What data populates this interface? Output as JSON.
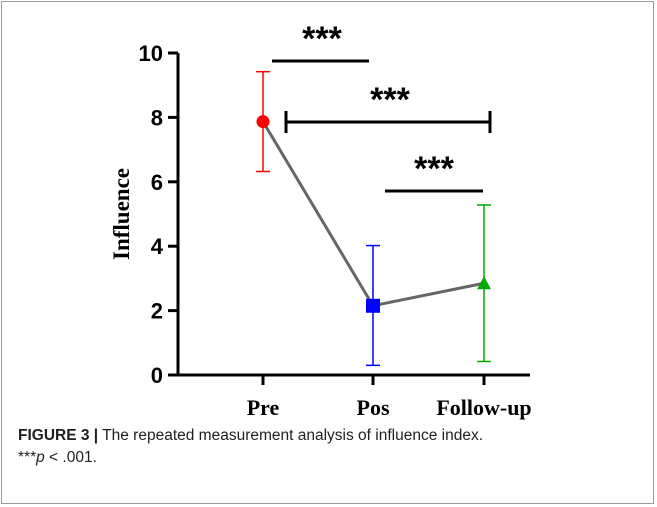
{
  "chart_data": {
    "type": "line",
    "categories": [
      "Pre",
      "Pos",
      "Follow-up"
    ],
    "xlabel": "",
    "ylabel": "Influence",
    "ylim": [
      0,
      10
    ],
    "yticks": [
      "0",
      "2",
      "4",
      "6",
      "8",
      "10"
    ],
    "series": [
      {
        "values": [
          7.87,
          2.15,
          2.85
        ],
        "error_low": [
          6.32,
          0.3,
          0.42
        ],
        "error_high": [
          9.42,
          4.02,
          5.28
        ],
        "point_colors": [
          "#ff0000",
          "#0000ff",
          "#00aa00"
        ],
        "markers": [
          "circle",
          "square",
          "triangle"
        ],
        "line_color": "#666666"
      }
    ],
    "significance": [
      {
        "from": 0,
        "to": 1,
        "label": "***"
      },
      {
        "from": 0,
        "to": 2,
        "label": "***"
      },
      {
        "from": 1,
        "to": 2,
        "label": "***"
      }
    ]
  },
  "caption": {
    "figure_label": "FIGURE 3 |",
    "text": " The repeated measurement analysis of influence index.",
    "note_stars": "***",
    "note_p": "p",
    "note_rest": " < .001."
  }
}
